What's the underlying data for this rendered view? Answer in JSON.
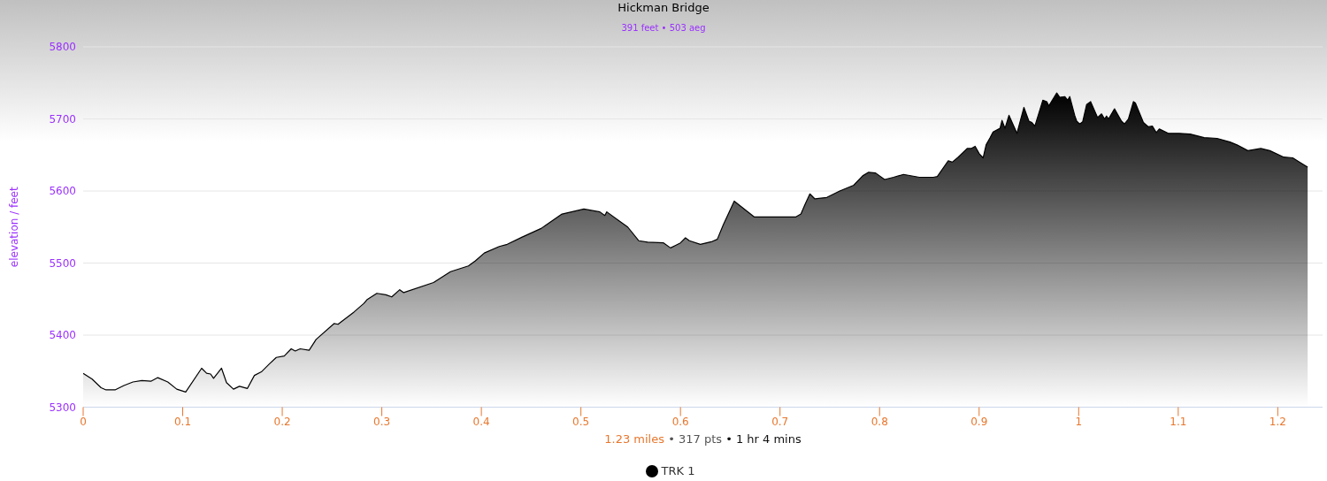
{
  "chart_data": {
    "type": "area",
    "title": "Hickman Bridge",
    "subtitle": "391 feet • 503 aeg",
    "xlabel": "1.23 miles • 317 pts • 1 hr 4 mins",
    "ylabel": "elevation / feet",
    "x": [
      0,
      0.009,
      0.018,
      0.023,
      0.032,
      0.041,
      0.05,
      0.059,
      0.068,
      0.075,
      0.085,
      0.094,
      0.103,
      0.119,
      0.124,
      0.128,
      0.131,
      0.139,
      0.144,
      0.151,
      0.157,
      0.165,
      0.172,
      0.179,
      0.187,
      0.194,
      0.202,
      0.209,
      0.213,
      0.218,
      0.227,
      0.234,
      0.252,
      0.256,
      0.272,
      0.282,
      0.285,
      0.295,
      0.304,
      0.31,
      0.318,
      0.322,
      0.352,
      0.369,
      0.387,
      0.394,
      0.403,
      0.418,
      0.426,
      0.441,
      0.46,
      0.481,
      0.503,
      0.519,
      0.524,
      0.526,
      0.538,
      0.547,
      0.558,
      0.567,
      0.583,
      0.59,
      0.6,
      0.605,
      0.609,
      0.62,
      0.632,
      0.637,
      0.643,
      0.654,
      0.674,
      0.716,
      0.721,
      0.725,
      0.73,
      0.735,
      0.747,
      0.76,
      0.774,
      0.783,
      0.789,
      0.796,
      0.805,
      0.814,
      0.824,
      0.84,
      0.854,
      0.858,
      0.869,
      0.873,
      0.879,
      0.888,
      0.892,
      0.896,
      0.9,
      0.904,
      0.907,
      0.911,
      0.914,
      0.921,
      0.923,
      0.926,
      0.93,
      0.938,
      0.945,
      0.95,
      0.953,
      0.956,
      0.964,
      0.968,
      0.97,
      0.978,
      0.981,
      0.986,
      0.989,
      0.991,
      0.996,
      0.998,
      1.001,
      1.004,
      1.008,
      1.012,
      1.019,
      1.023,
      1.026,
      1.028,
      1.03,
      1.036,
      1.043,
      1.046,
      1.05,
      1.055,
      1.057,
      1.065,
      1.07,
      1.074,
      1.078,
      1.081,
      1.09,
      1.101,
      1.112,
      1.126,
      1.139,
      1.152,
      1.159,
      1.17,
      1.183,
      1.192,
      1.206,
      1.215,
      1.222,
      1.23
    ],
    "series": [
      {
        "name": "TRK 1",
        "color": "#000000",
        "values": [
          5347,
          5339,
          5327,
          5324,
          5324,
          5330,
          5335,
          5337,
          5336,
          5341,
          5335,
          5325,
          5321,
          5354,
          5347,
          5346,
          5340,
          5354,
          5334,
          5325,
          5329,
          5326,
          5344,
          5349,
          5360,
          5369,
          5371,
          5381,
          5378,
          5381,
          5379,
          5394,
          5416,
          5415,
          5432,
          5444,
          5449,
          5458,
          5456,
          5453,
          5463,
          5459,
          5473,
          5488,
          5496,
          5503,
          5514,
          5523,
          5526,
          5536,
          5548,
          5568,
          5575,
          5571,
          5566,
          5571,
          5559,
          5550,
          5531,
          5529,
          5528,
          5521,
          5528,
          5535,
          5531,
          5526,
          5530,
          5533,
          5553,
          5586,
          5564,
          5564,
          5568,
          5581,
          5596,
          5589,
          5591,
          5600,
          5608,
          5621,
          5626,
          5625,
          5616,
          5619,
          5623,
          5619,
          5619,
          5620,
          5642,
          5640,
          5647,
          5659,
          5659,
          5662,
          5652,
          5646,
          5664,
          5674,
          5682,
          5687,
          5698,
          5687,
          5705,
          5680,
          5716,
          5697,
          5695,
          5690,
          5726,
          5724,
          5718,
          5736,
          5730,
          5731,
          5726,
          5731,
          5705,
          5697,
          5693,
          5696,
          5720,
          5724,
          5702,
          5707,
          5700,
          5704,
          5700,
          5714,
          5697,
          5693,
          5700,
          5724,
          5722,
          5695,
          5689,
          5690,
          5681,
          5686,
          5680,
          5680,
          5679,
          5674,
          5673,
          5668,
          5664,
          5656,
          5659,
          5656,
          5647,
          5646,
          5640,
          5633
        ]
      }
    ],
    "xlim": [
      0,
      1.245
    ],
    "xticks": [
      0,
      0.1,
      0.2,
      0.3,
      0.4,
      0.5,
      0.6,
      0.7,
      0.8,
      0.9,
      1,
      1.1,
      1.2
    ],
    "ylim": [
      5300,
      5800
    ],
    "yticks": [
      5300,
      5400,
      5500,
      5600,
      5700,
      5800
    ],
    "grid": "y",
    "legend": "bottom"
  }
}
